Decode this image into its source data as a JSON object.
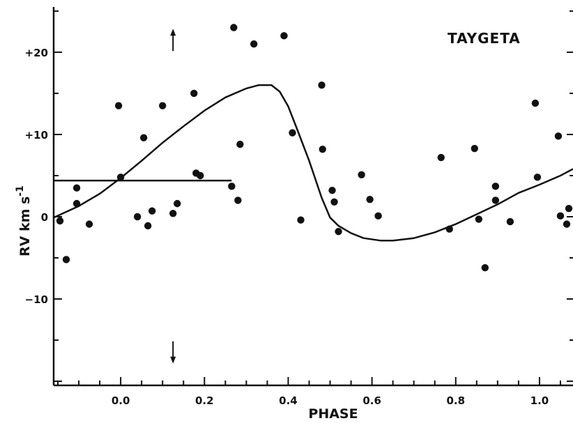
{
  "chart_data": {
    "type": "scatter",
    "title": "TAYGETA",
    "xlabel": "PHASE",
    "ylabel": "RV km s",
    "ylabel_superscript": "-1",
    "xlim": [
      -0.16,
      1.08
    ],
    "ylim": [
      -20.5,
      25.5
    ],
    "xticks": [
      0.0,
      0.2,
      0.4,
      0.6,
      0.8,
      1.0
    ],
    "xtick_labels": [
      "0.0",
      "0.2",
      "0.4",
      "0.6",
      "0.8",
      "1.0"
    ],
    "yticks": [
      20,
      10,
      0,
      -10
    ],
    "ytick_labels": [
      "+20",
      "+10",
      "0",
      "−10"
    ],
    "grid": false,
    "series": [
      {
        "kind": "points",
        "x": [
          -0.145,
          -0.13,
          -0.105,
          -0.105,
          -0.075,
          -0.005,
          0.0,
          0.04,
          0.055,
          0.065,
          0.075,
          0.1,
          0.125,
          0.135,
          0.175,
          0.18,
          0.19,
          0.265,
          0.27,
          0.28,
          0.285,
          0.318,
          0.39,
          0.41,
          0.43,
          0.48,
          0.482,
          0.505,
          0.51,
          0.52,
          0.575,
          0.595,
          0.615,
          0.765,
          0.785,
          0.845,
          0.855,
          0.87,
          0.895,
          0.895,
          0.93,
          0.99,
          0.995,
          1.045,
          1.05,
          1.065,
          1.07
        ],
        "y": [
          -0.5,
          -5.2,
          3.5,
          1.6,
          -0.9,
          13.5,
          4.8,
          0.0,
          9.6,
          -1.1,
          0.7,
          13.5,
          0.4,
          1.6,
          15.0,
          5.3,
          5.0,
          3.7,
          23.0,
          2.0,
          8.8,
          21.0,
          22.0,
          10.2,
          -0.4,
          16.0,
          8.2,
          3.2,
          1.8,
          -1.8,
          5.1,
          2.1,
          0.1,
          7.2,
          -1.5,
          8.3,
          -0.3,
          -6.2,
          3.7,
          2.0,
          -0.6,
          13.8,
          4.8,
          9.8,
          0.1,
          -0.9,
          1.0
        ]
      },
      {
        "kind": "orbit-curve",
        "x": [
          -0.16,
          -0.1,
          -0.05,
          0.0,
          0.05,
          0.1,
          0.15,
          0.2,
          0.25,
          0.3,
          0.33,
          0.36,
          0.38,
          0.4,
          0.42,
          0.45,
          0.48,
          0.5,
          0.52,
          0.55,
          0.58,
          0.62,
          0.65,
          0.7,
          0.75,
          0.8,
          0.85,
          0.9,
          0.95,
          1.0,
          1.05,
          1.08
        ],
        "y": [
          -0.1,
          1.3,
          2.8,
          4.7,
          6.8,
          9.0,
          11.0,
          12.9,
          14.5,
          15.6,
          16.0,
          16.0,
          15.2,
          13.4,
          10.8,
          6.8,
          2.3,
          -0.1,
          -1.1,
          -2.0,
          -2.6,
          -2.9,
          -2.9,
          -2.6,
          -1.9,
          -0.9,
          0.3,
          1.5,
          2.9,
          3.9,
          5.0,
          5.8
        ]
      },
      {
        "kind": "mean-level-line",
        "x": [
          -0.16,
          0.265
        ],
        "y": [
          4.4,
          4.4
        ]
      }
    ],
    "annotations": [
      {
        "kind": "arrow-up",
        "x": 0.125,
        "y": 21.5
      },
      {
        "kind": "arrow-down",
        "x": 0.125,
        "y": -16.5
      }
    ]
  }
}
